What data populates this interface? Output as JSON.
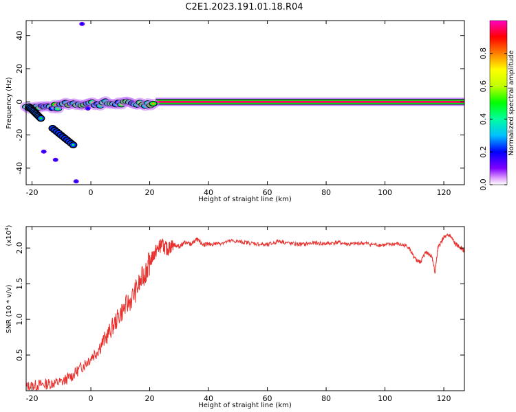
{
  "figure": {
    "title": "C2E1.2023.191.01.18.R04"
  },
  "chart_data": [
    {
      "type": "heatmap",
      "title": "C2E1.2023.191.01.18.R04",
      "xlabel": "Height of straight line (km)",
      "ylabel": "Frequency (Hz)",
      "xlim": [
        -22,
        127
      ],
      "ylim": [
        -50,
        49
      ],
      "xticks": [
        -20,
        0,
        20,
        40,
        60,
        80,
        100,
        120
      ],
      "yticks": [
        -40,
        -20,
        0,
        20,
        40
      ],
      "colorbar": {
        "label": "Normalized spectral amplitude",
        "range": [
          0,
          1
        ],
        "ticks": [
          "0.0",
          "0.2",
          "0.4",
          "0.6",
          "0.8"
        ],
        "colormap": [
          "#ffffff",
          "#ff80ff",
          "#8000ff",
          "#0000ff",
          "#00c0ff",
          "#00ffa0",
          "#00ff00",
          "#c0ff00",
          "#ffff00",
          "#ff8000",
          "#ff0000",
          "#ff00c0"
        ]
      },
      "features": [
        {
          "name": "main-line",
          "x_range": [
            22,
            127
          ],
          "freq": 0,
          "amplitude": 0.95
        },
        {
          "name": "near-line-cluster",
          "x_range": [
            -22,
            22
          ],
          "freq_center": -1,
          "amplitude_range": [
            0.3,
            0.85
          ]
        },
        {
          "name": "low-branch-1",
          "x_range": [
            -21,
            -17
          ],
          "freq_range": [
            -3,
            -10
          ],
          "amplitude": 0.5
        },
        {
          "name": "low-branch-2",
          "x_range": [
            -13,
            -6
          ],
          "freq_range": [
            -16,
            -26
          ],
          "amplitude": 0.45
        },
        {
          "name": "scatter-low",
          "points": [
            [
              -12,
              -35
            ],
            [
              -5,
              -48
            ],
            [
              -16,
              -30
            ],
            [
              -1,
              -4
            ],
            [
              -3,
              47
            ]
          ],
          "amplitude": 0.2
        }
      ]
    },
    {
      "type": "line",
      "xlabel": "Height of straight line (km)",
      "ylabel": "SNR (10 * v/v)",
      "y_multiplier": "(x10^4)",
      "xlim": [
        -22,
        127
      ],
      "ylim": [
        0,
        2.3
      ],
      "xticks": [
        -20,
        0,
        20,
        40,
        60,
        80,
        100,
        120
      ],
      "yticks": [
        0.5,
        1.0,
        1.5,
        2.0
      ],
      "ytick_labels": [
        "0.5",
        "1.0",
        "1.5",
        "2.0"
      ],
      "series": [
        {
          "color": "#e8302c",
          "x": [
            -22,
            -18,
            -14,
            -10,
            -6,
            -2,
            2,
            6,
            10,
            14,
            18,
            20,
            22,
            24,
            26,
            28,
            30,
            32,
            34,
            36,
            38,
            40,
            44,
            48,
            52,
            56,
            60,
            64,
            68,
            72,
            76,
            80,
            84,
            88,
            92,
            96,
            100,
            104,
            108,
            110,
            112,
            114,
            116,
            117,
            118,
            120,
            122,
            124,
            126,
            127
          ],
          "y": [
            0.05,
            0.08,
            0.1,
            0.12,
            0.22,
            0.38,
            0.55,
            0.8,
            1.08,
            1.3,
            1.62,
            1.8,
            1.95,
            2.05,
            1.98,
            2.05,
            2.02,
            2.08,
            2.05,
            2.12,
            2.05,
            2.05,
            2.07,
            2.1,
            2.08,
            2.06,
            2.04,
            2.1,
            2.06,
            2.05,
            2.07,
            2.06,
            2.08,
            2.05,
            2.07,
            2.05,
            2.04,
            2.06,
            2.02,
            1.85,
            1.8,
            1.95,
            1.88,
            1.65,
            2.0,
            2.15,
            2.18,
            2.05,
            2.0,
            1.95
          ]
        }
      ]
    }
  ]
}
